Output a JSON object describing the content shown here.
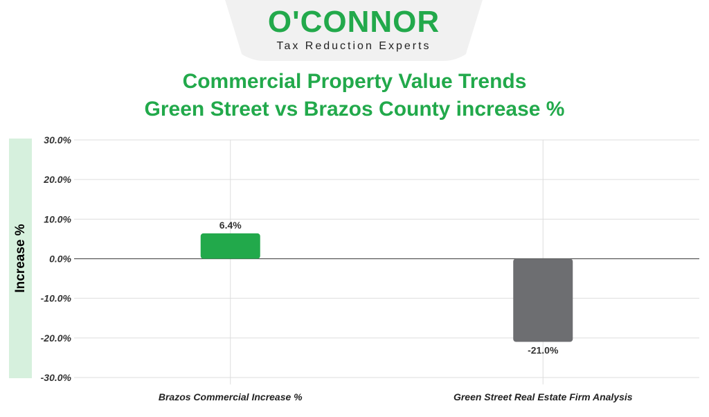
{
  "logo": {
    "name": "O'CONNOR",
    "tagline": "Tax Reduction Experts"
  },
  "chart_data": {
    "type": "bar",
    "title": "Commercial Property Value Trends",
    "subtitle": "Green Street vs Brazos County increase %",
    "ylabel": "Increase %",
    "xlabel": "",
    "categories": [
      "Brazos Commercial Increase %",
      "Green Street Real Estate Firm Analysis"
    ],
    "values": [
      6.4,
      -21.0
    ],
    "data_labels": [
      "6.4%",
      "-21.0%"
    ],
    "colors": [
      "#22a94b",
      "#6d6e71"
    ],
    "ylim": [
      -30,
      30
    ],
    "yticks": [
      30,
      20,
      10,
      0,
      -10,
      -20,
      -30
    ],
    "ytick_labels": [
      "30.0%",
      "20.0%",
      "10.0%",
      "0.0%",
      "-10.0%",
      "-20.0%",
      "-30.0%"
    ],
    "grid": true,
    "legend": "none"
  }
}
